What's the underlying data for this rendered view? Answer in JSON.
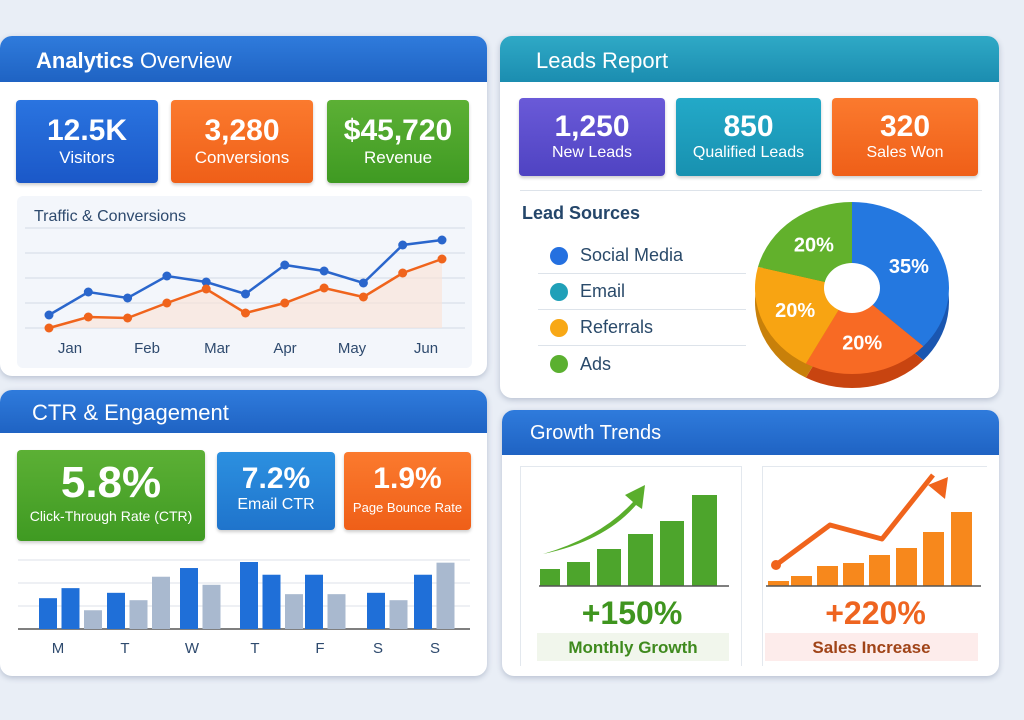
{
  "analytics": {
    "title_bold": "Analytics",
    "title_rest": " Overview",
    "cards": [
      {
        "value": "12.5K",
        "label": "Visitors"
      },
      {
        "value": "3,280",
        "label": "Conversions"
      },
      {
        "value": "$45,720",
        "label": "Revenue"
      }
    ]
  },
  "leads": {
    "title": "Leads Report",
    "cards": [
      {
        "value": "1,250",
        "label": "New Leads"
      },
      {
        "value": "850",
        "label": "Qualified Leads"
      },
      {
        "value": "320",
        "label": "Sales Won"
      }
    ],
    "sources_title": "Lead Sources",
    "legend": [
      {
        "label": "Social Media",
        "color": "#2470e0"
      },
      {
        "label": "Email",
        "color": "#20a0b8"
      },
      {
        "label": "Referrals",
        "color": "#f8a816"
      },
      {
        "label": "Ads",
        "color": "#5bb030"
      }
    ]
  },
  "ctr": {
    "title": "CTR & Engagement",
    "cards": [
      {
        "value": "5.8%",
        "label": "Click-Through Rate (CTR)"
      },
      {
        "value": "7.2%",
        "label": "Email CTR"
      },
      {
        "value": "1.9%",
        "label": "Page Bounce Rate"
      }
    ]
  },
  "growth": {
    "title": "Growth Trends",
    "left": {
      "value": "+150%",
      "label": "Monthly Growth"
    },
    "right": {
      "value": "+220%",
      "label": "Sales Increase"
    }
  },
  "chart_data": [
    {
      "type": "line",
      "title": "Traffic & Conversions",
      "x_ticks": [
        "Jan",
        "Feb",
        "Mar",
        "Apr",
        "May",
        "Jun"
      ],
      "ylim": [
        0,
        4
      ],
      "grid": true,
      "series": [
        {
          "color": "#2a66cc",
          "values": [
            0.52,
            1.44,
            1.2,
            2.08,
            1.84,
            1.36,
            2.52,
            2.28,
            1.8,
            3.32,
            3.52
          ]
        },
        {
          "color": "#f0641c",
          "values": [
            0,
            0.44,
            0.4,
            1.0,
            1.56,
            0.6,
            1.0,
            1.6,
            1.24,
            2.2,
            2.76
          ]
        }
      ]
    },
    {
      "type": "pie",
      "slices": [
        {
          "label": "35%",
          "value": 35,
          "color": "#2478e0"
        },
        {
          "label": "20%",
          "value": 20,
          "color": "#f86a24"
        },
        {
          "label": "20%",
          "value": 20,
          "color": "#f8a412"
        },
        {
          "label": "20%",
          "value": 20,
          "color": "#62b12c"
        }
      ]
    },
    {
      "type": "bar",
      "categories": [
        "M",
        "T",
        "W",
        "T",
        "F",
        "S",
        "S"
      ],
      "ylim": [
        0,
        100
      ],
      "grid": true,
      "groups": [
        [
          {
            "v": 46,
            "c": "blue"
          },
          {
            "v": 61,
            "c": "blue"
          },
          {
            "v": 28,
            "c": "gray"
          }
        ],
        [
          {
            "v": 54,
            "c": "blue"
          },
          {
            "v": 43,
            "c": "gray"
          },
          {
            "v": 78,
            "c": "gray"
          }
        ],
        [
          {
            "v": 91,
            "c": "blue"
          },
          {
            "v": 66,
            "c": "gray"
          }
        ],
        [
          {
            "v": 100,
            "c": "blue"
          },
          {
            "v": 81,
            "c": "blue"
          },
          {
            "v": 52,
            "c": "gray"
          }
        ],
        [
          {
            "v": 81,
            "c": "blue"
          },
          {
            "v": 52,
            "c": "gray"
          }
        ],
        [
          {
            "v": 54,
            "c": "blue"
          },
          {
            "v": 43,
            "c": "gray"
          }
        ],
        [
          {
            "v": 81,
            "c": "blue"
          },
          {
            "v": 99,
            "c": "gray"
          }
        ]
      ]
    },
    {
      "type": "bar",
      "color": "#4da52c",
      "values": [
        17,
        24,
        37,
        52,
        65,
        91
      ]
    },
    {
      "type": "bar",
      "color": "#f7881c",
      "values": [
        5,
        10,
        20,
        23,
        31,
        38,
        54,
        74
      ],
      "trend": [
        21,
        61,
        47,
        107
      ]
    }
  ]
}
